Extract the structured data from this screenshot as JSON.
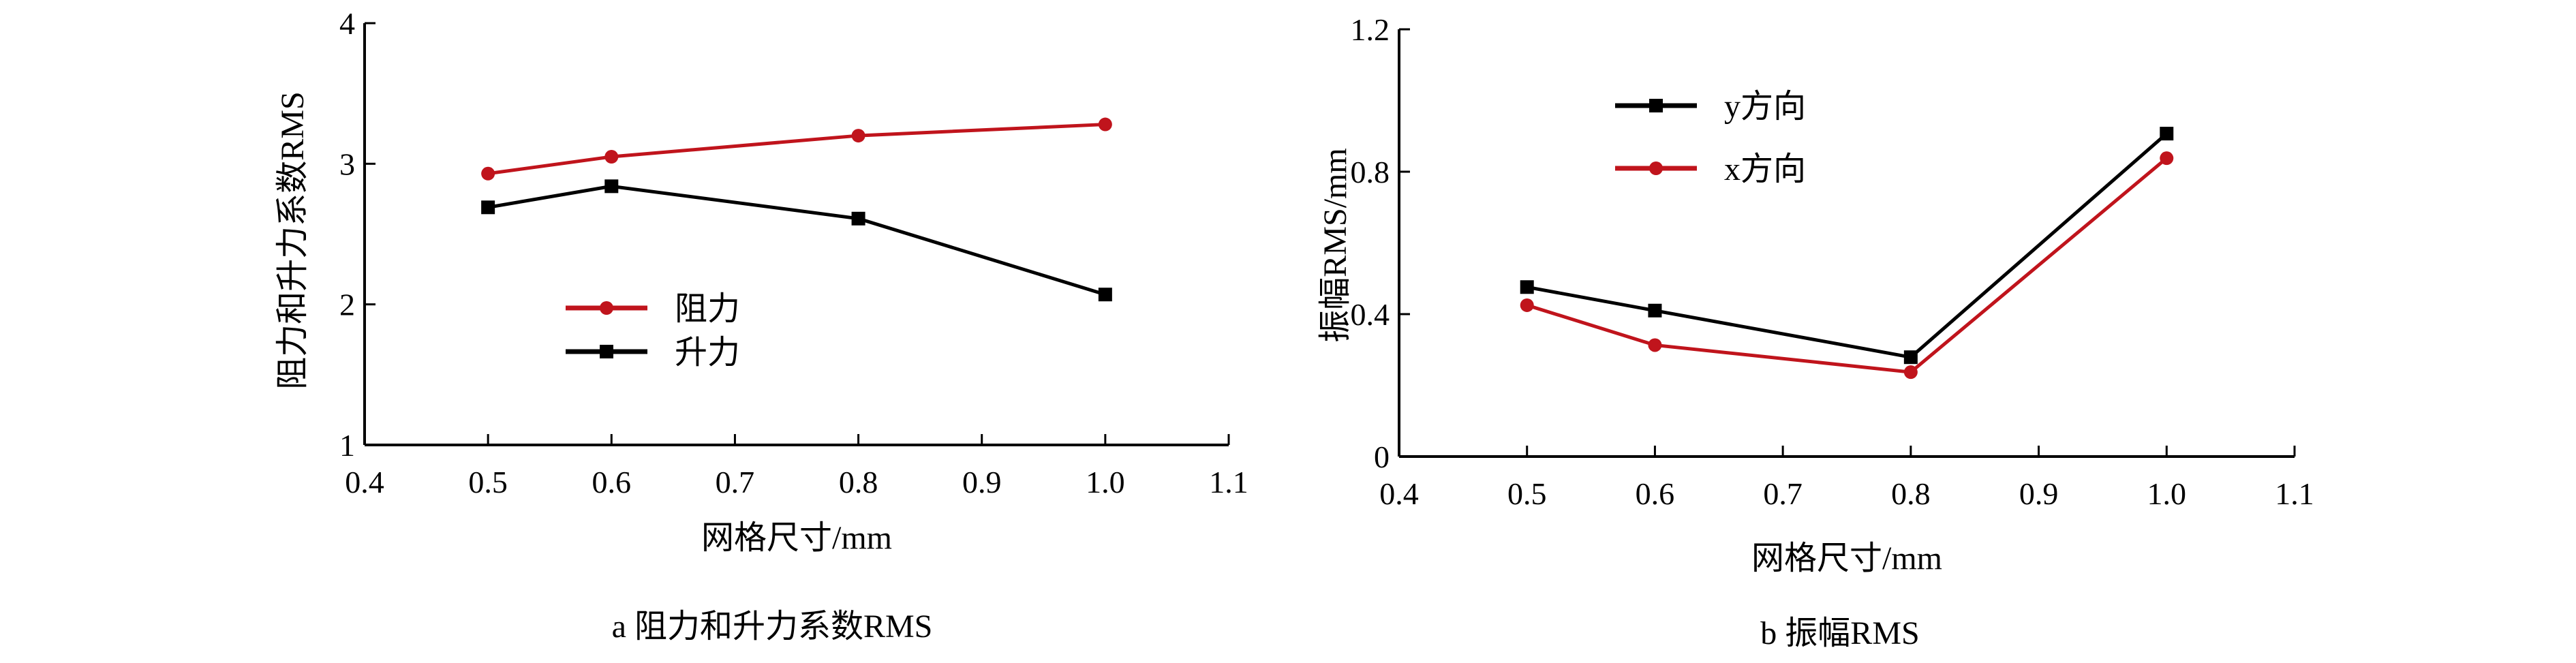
{
  "chart_data": [
    {
      "type": "line",
      "caption": "a  阻力和升力系数RMS",
      "xlabel": "网格尺寸/mm",
      "ylabel": "阻力和升力系数RMS",
      "xlim": [
        0.4,
        1.1
      ],
      "ylim": [
        1,
        4
      ],
      "xticks": [
        "0.4",
        "0.5",
        "0.6",
        "0.7",
        "0.8",
        "0.9",
        "1.0",
        "1.1"
      ],
      "yticks": [
        "1",
        "2",
        "3",
        "4"
      ],
      "grid": false,
      "legend_position": "center",
      "x": [
        0.5,
        0.6,
        0.8,
        1.0
      ],
      "series": [
        {
          "name": "阻力",
          "color": "#c0141c",
          "marker": "circle",
          "values": [
            2.93,
            3.05,
            3.2,
            3.28
          ]
        },
        {
          "name": "升力",
          "color": "#000000",
          "marker": "square",
          "values": [
            2.69,
            2.84,
            2.61,
            2.07
          ]
        }
      ]
    },
    {
      "type": "line",
      "caption": "b  振幅RMS",
      "xlabel": "网格尺寸/mm",
      "ylabel": "振幅RMS/mm",
      "xlim": [
        0.4,
        1.1
      ],
      "ylim": [
        0,
        1.2
      ],
      "xticks": [
        "0.4",
        "0.5",
        "0.6",
        "0.7",
        "0.8",
        "0.9",
        "1.0",
        "1.1"
      ],
      "yticks": [
        "0",
        "0.4",
        "0.8",
        "1.2"
      ],
      "grid": false,
      "legend_position": "top-left",
      "x": [
        0.5,
        0.6,
        0.8,
        1.0
      ],
      "series": [
        {
          "name": "y方向",
          "color": "#000000",
          "marker": "square",
          "values": [
            0.476,
            0.41,
            0.279,
            0.907
          ]
        },
        {
          "name": "x方向",
          "color": "#c0141c",
          "marker": "circle",
          "values": [
            0.425,
            0.313,
            0.237,
            0.838
          ]
        }
      ]
    }
  ]
}
